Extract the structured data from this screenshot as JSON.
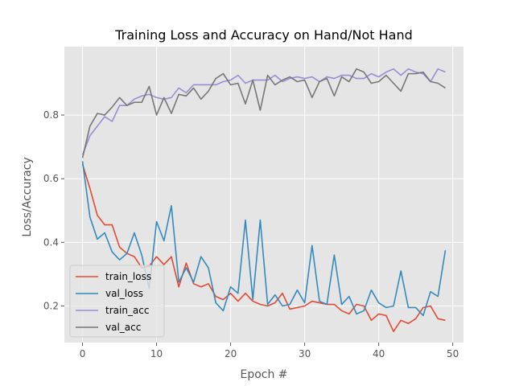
{
  "chart_data": {
    "type": "line",
    "title": "Training Loss and Accuracy on Hand/Not Hand",
    "xlabel": "Epoch #",
    "ylabel": "Loss/Accuracy",
    "xlim": [
      -2.45,
      51.45
    ],
    "ylim": [
      0.085,
      1.015
    ],
    "xticks": [
      0,
      10,
      20,
      30,
      40,
      50
    ],
    "yticks": [
      0.2,
      0.4,
      0.6,
      0.8
    ],
    "grid": true,
    "legend": "lower-left",
    "x": [
      0,
      1,
      2,
      3,
      4,
      5,
      6,
      7,
      8,
      9,
      10,
      11,
      12,
      13,
      14,
      15,
      16,
      17,
      18,
      19,
      20,
      21,
      22,
      23,
      24,
      25,
      26,
      27,
      28,
      29,
      30,
      31,
      32,
      33,
      34,
      35,
      36,
      37,
      38,
      39,
      40,
      41,
      42,
      43,
      44,
      45,
      46,
      47,
      48,
      49
    ],
    "series": [
      {
        "name": "train_loss",
        "color": "#e24a33",
        "values": [
          0.645,
          0.57,
          0.485,
          0.455,
          0.455,
          0.385,
          0.365,
          0.355,
          0.32,
          0.325,
          0.355,
          0.33,
          0.355,
          0.26,
          0.335,
          0.27,
          0.26,
          0.27,
          0.23,
          0.22,
          0.24,
          0.215,
          0.24,
          0.215,
          0.205,
          0.2,
          0.21,
          0.24,
          0.19,
          0.195,
          0.2,
          0.215,
          0.21,
          0.205,
          0.205,
          0.185,
          0.175,
          0.205,
          0.2,
          0.155,
          0.175,
          0.17,
          0.12,
          0.155,
          0.145,
          0.16,
          0.195,
          0.2,
          0.16,
          0.155
        ]
      },
      {
        "name": "val_loss",
        "color": "#348abd",
        "values": [
          0.655,
          0.48,
          0.41,
          0.43,
          0.37,
          0.345,
          0.365,
          0.43,
          0.36,
          0.255,
          0.465,
          0.405,
          0.515,
          0.275,
          0.32,
          0.275,
          0.355,
          0.32,
          0.21,
          0.185,
          0.26,
          0.24,
          0.47,
          0.22,
          0.47,
          0.205,
          0.235,
          0.2,
          0.205,
          0.25,
          0.21,
          0.39,
          0.215,
          0.205,
          0.36,
          0.205,
          0.23,
          0.175,
          0.185,
          0.25,
          0.21,
          0.195,
          0.2,
          0.31,
          0.195,
          0.195,
          0.17,
          0.245,
          0.23,
          0.375
        ]
      },
      {
        "name": "train_acc",
        "color": "#988ed5",
        "values": [
          0.675,
          0.735,
          0.765,
          0.795,
          0.78,
          0.83,
          0.83,
          0.85,
          0.86,
          0.865,
          0.855,
          0.85,
          0.855,
          0.885,
          0.87,
          0.895,
          0.895,
          0.895,
          0.895,
          0.905,
          0.91,
          0.925,
          0.9,
          0.91,
          0.91,
          0.91,
          0.925,
          0.905,
          0.915,
          0.92,
          0.915,
          0.92,
          0.905,
          0.92,
          0.915,
          0.925,
          0.925,
          0.915,
          0.915,
          0.93,
          0.92,
          0.935,
          0.945,
          0.925,
          0.945,
          0.935,
          0.93,
          0.905,
          0.945,
          0.935
        ]
      },
      {
        "name": "val_acc",
        "color": "#777777",
        "values": [
          0.665,
          0.765,
          0.805,
          0.8,
          0.825,
          0.855,
          0.83,
          0.84,
          0.84,
          0.89,
          0.8,
          0.855,
          0.805,
          0.865,
          0.86,
          0.885,
          0.85,
          0.875,
          0.915,
          0.93,
          0.895,
          0.9,
          0.835,
          0.91,
          0.815,
          0.925,
          0.895,
          0.91,
          0.92,
          0.905,
          0.91,
          0.855,
          0.905,
          0.915,
          0.86,
          0.92,
          0.905,
          0.945,
          0.935,
          0.9,
          0.905,
          0.925,
          0.9,
          0.875,
          0.93,
          0.93,
          0.935,
          0.905,
          0.9,
          0.885
        ]
      }
    ]
  }
}
